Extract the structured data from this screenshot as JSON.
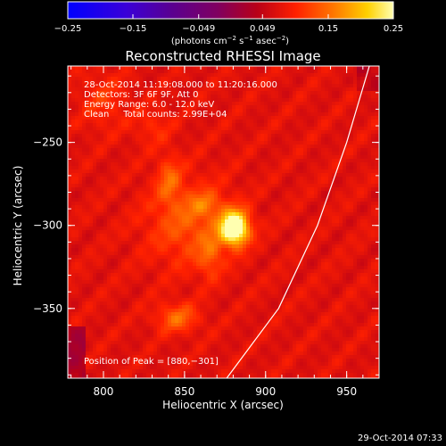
{
  "chart_data": {
    "type": "heatmap",
    "title": "Reconstructed RHESSI Image",
    "xlabel": "Heliocentric X (arcsec)",
    "ylabel": "Heliocentric Y (arcsec)",
    "xlim": [
      778,
      970
    ],
    "ylim": [
      -392,
      -204
    ],
    "x_ticks": [
      {
        "value": 800,
        "label": "800"
      },
      {
        "value": 850,
        "label": "850"
      },
      {
        "value": 900,
        "label": "900"
      },
      {
        "value": 950,
        "label": "950"
      }
    ],
    "y_ticks": [
      {
        "value": -250,
        "label": "−250"
      },
      {
        "value": -300,
        "label": "−300"
      },
      {
        "value": -350,
        "label": "−350"
      }
    ],
    "colorbar": {
      "range": [
        -0.25,
        0.25
      ],
      "ticks": [
        {
          "value": -0.25,
          "label": "−0.25"
        },
        {
          "value": -0.15,
          "label": "−0.15"
        },
        {
          "value": -0.049,
          "label": "−0.049"
        },
        {
          "value": 0.049,
          "label": "0.049"
        },
        {
          "value": 0.15,
          "label": "0.15"
        },
        {
          "value": 0.25,
          "label": "0.25"
        }
      ],
      "unit_label": {
        "open": "(photons cm",
        "exp1": "−2",
        "mid1": " s",
        "exp2": "−1",
        "mid2": " asec",
        "exp3": "−2",
        "close": ")"
      }
    },
    "annotations": [
      "28-Oct-2014 11:19:08.000 to 11:20:16.000",
      "Detectors: 3F 6F 9F, Att 0",
      "Energy Range: 6.0 - 12.0 keV",
      "Clean     Total counts: 2.99E+04"
    ],
    "peak_label": "Position of Peak = [880,−301]",
    "peak": {
      "x": 880,
      "y": -301
    },
    "sources": [
      {
        "x": 880,
        "y": -301,
        "amp": 0.24,
        "sx": 6,
        "sy": 7
      },
      {
        "x": 852,
        "y": -298,
        "amp": 0.06,
        "sx": 18,
        "sy": 18
      },
      {
        "x": 840,
        "y": -272,
        "amp": 0.055,
        "sx": 5,
        "sy": 10
      },
      {
        "x": 862,
        "y": -287,
        "amp": 0.045,
        "sx": 7,
        "sy": 5
      },
      {
        "x": 845,
        "y": -355,
        "amp": 0.07,
        "sx": 9,
        "sy": 6
      },
      {
        "x": 865,
        "y": -318,
        "amp": 0.05,
        "sx": 5,
        "sy": 9
      },
      {
        "x": 800,
        "y": -225,
        "amp": 0.035,
        "sx": 10,
        "sy": 12
      },
      {
        "x": 830,
        "y": -240,
        "amp": 0.03,
        "sx": 8,
        "sy": 8
      }
    ],
    "limb": [
      {
        "x": 964,
        "y": -204
      },
      {
        "x": 950,
        "y": -250
      },
      {
        "x": 932,
        "y": -300
      },
      {
        "x": 908,
        "y": -350
      },
      {
        "x": 876,
        "y": -392
      }
    ],
    "timestamp": "29-Oct-2014 07:33"
  }
}
